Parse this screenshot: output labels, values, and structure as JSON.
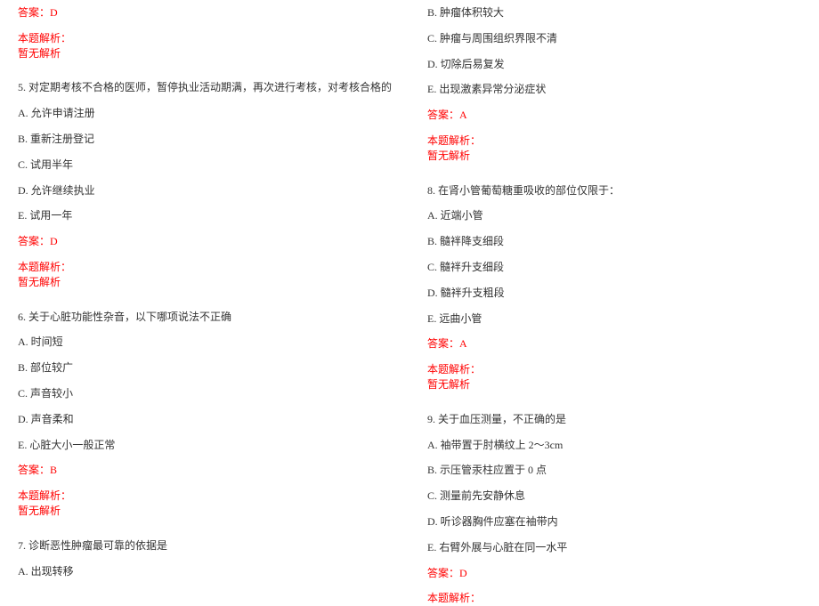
{
  "colors": {
    "text": "#333333",
    "answer": "#ff0000",
    "background": "#ffffff"
  },
  "typography": {
    "font_family": "SimSun",
    "font_size_pt": 9
  },
  "left": {
    "ans4": "答案：D",
    "ah4": "本题解析：",
    "ab4": "暂无解析",
    "q5": "5. 对定期考核不合格的医师，暂停执业活动期满，再次进行考核，对考核合格的",
    "q5a": "A. 允许申请注册",
    "q5b": "B. 重新注册登记",
    "q5c": "C. 试用半年",
    "q5d": "D. 允许继续执业",
    "q5e": "E. 试用一年",
    "ans5": "答案：D",
    "ah5": "本题解析：",
    "ab5": "暂无解析",
    "q6": "6. 关于心脏功能性杂音，以下哪项说法不正确",
    "q6a": "A. 时间短",
    "q6b": "B. 部位较广",
    "q6c": "C. 声音较小",
    "q6d": "D. 声音柔和",
    "q6e": "E. 心脏大小一般正常",
    "ans6": "答案：B",
    "ah6": "本题解析：",
    "ab6": "暂无解析",
    "q7": "7. 诊断恶性肿瘤最可靠的依据是",
    "q7a": "A. 出现转移"
  },
  "right": {
    "q7b": "B. 肿瘤体积较大",
    "q7c": "C. 肿瘤与周围组织界限不清",
    "q7d": "D. 切除后易复发",
    "q7e": "E. 出现激素异常分泌症状",
    "ans7": "答案：A",
    "ah7": "本题解析：",
    "ab7": "暂无解析",
    "q8": "8. 在肾小管葡萄糖重吸收的部位仅限于：",
    "q8a": "A. 近端小管",
    "q8b": "B. 髓袢降支细段",
    "q8c": "C. 髓袢升支细段",
    "q8d": "D. 髓袢升支粗段",
    "q8e": "E. 远曲小管",
    "ans8": "答案：A",
    "ah8": "本题解析：",
    "ab8": "暂无解析",
    "q9": "9. 关于血压测量，不正确的是",
    "q9a": "A. 袖带置于肘横纹上 2～3cm",
    "q9b": "B. 示压管汞柱应置于 0 点",
    "q9c": "C. 测量前先安静休息",
    "q9d": "D. 听诊器胸件应塞在袖带内",
    "q9e": "E. 右臂外展与心脏在同一水平",
    "ans9": "答案：D",
    "ah9": "本题解析："
  }
}
